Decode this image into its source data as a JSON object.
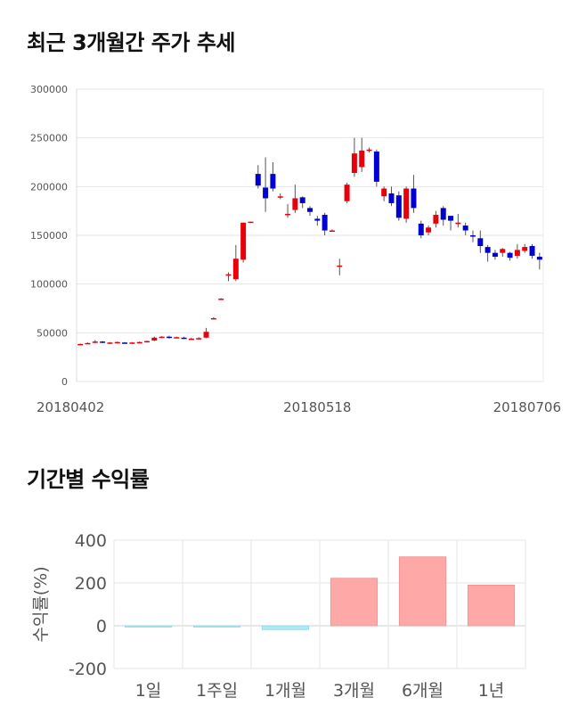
{
  "sections": {
    "price_title": "최근 3개월간 주가 추세",
    "return_title": "기간별 수익률"
  },
  "chart_data": [
    {
      "type": "candlestick",
      "title": "최근 3개월간 주가 추세",
      "ylim": [
        0,
        300000
      ],
      "yticks": [
        0,
        50000,
        100000,
        150000,
        200000,
        250000,
        300000
      ],
      "ytick_labels": [
        "0",
        "50000",
        "100000",
        "150000",
        "200000",
        "250000",
        "300000"
      ],
      "xtick_labels": [
        {
          "index": 0,
          "label": "20180402"
        },
        {
          "index": 32,
          "label": "20180518"
        },
        {
          "index": 64,
          "label": "20180706"
        }
      ],
      "grid": true,
      "colors": {
        "up": "#e8000b",
        "down": "#0000d0",
        "wick": "#555555",
        "grid": "#e6e6e6"
      },
      "candles": [
        [
          38500,
          38500,
          38000,
          39000
        ],
        [
          38500,
          39500,
          38500,
          40000
        ],
        [
          40000,
          41000,
          39500,
          42500
        ],
        [
          41000,
          40000,
          39500,
          41500
        ],
        [
          40000,
          40000,
          39500,
          40500
        ],
        [
          40000,
          40500,
          39500,
          41000
        ],
        [
          40000,
          39500,
          39000,
          40500
        ],
        [
          39500,
          40000,
          39000,
          40500
        ],
        [
          40000,
          40500,
          39500,
          41000
        ],
        [
          40500,
          41500,
          40000,
          42000
        ],
        [
          42000,
          45000,
          41500,
          46000
        ],
        [
          45000,
          46000,
          44500,
          46500
        ],
        [
          46000,
          45000,
          44000,
          47000
        ],
        [
          45000,
          45500,
          44500,
          46000
        ],
        [
          45000,
          44500,
          43500,
          46000
        ],
        [
          44000,
          44000,
          43000,
          45000
        ],
        [
          44000,
          44500,
          43500,
          45500
        ],
        [
          45000,
          51000,
          44500,
          55000
        ],
        [
          64000,
          65000,
          64000,
          66000
        ],
        [
          84000,
          85000,
          84000,
          85500
        ],
        [
          110000,
          110000,
          103000,
          112000
        ],
        [
          105000,
          126000,
          103000,
          140000
        ],
        [
          125000,
          163000,
          122000,
          163000
        ],
        [
          163500,
          164000,
          163000,
          164000
        ],
        [
          213000,
          201000,
          198000,
          222000
        ],
        [
          199000,
          188000,
          174000,
          230000
        ],
        [
          213000,
          198000,
          195000,
          225000
        ],
        [
          190000,
          190000,
          187000,
          193000
        ],
        [
          172000,
          172000,
          168000,
          182000
        ],
        [
          176000,
          188000,
          173000,
          202000
        ],
        [
          189000,
          183000,
          178000,
          190000
        ],
        [
          178000,
          174000,
          170000,
          180000
        ],
        [
          167000,
          165000,
          160000,
          170000
        ],
        [
          171000,
          155000,
          150000,
          173000
        ],
        [
          155000,
          155000,
          154000,
          156000
        ],
        [
          119000,
          119000,
          109000,
          126000
        ],
        [
          185000,
          202000,
          183000,
          204000
        ],
        [
          214000,
          234000,
          210000,
          250000
        ],
        [
          220000,
          237000,
          215000,
          250000
        ],
        [
          238000,
          238000,
          235000,
          240000
        ],
        [
          236000,
          205000,
          200000,
          238000
        ],
        [
          190000,
          198000,
          185000,
          200000
        ],
        [
          193000,
          183000,
          180000,
          200000
        ],
        [
          191000,
          168000,
          165000,
          195000
        ],
        [
          167000,
          198000,
          163000,
          200000
        ],
        [
          198000,
          178000,
          173000,
          212000
        ],
        [
          162000,
          150000,
          147000,
          165000
        ],
        [
          153000,
          158000,
          150000,
          160000
        ],
        [
          162000,
          171000,
          158000,
          175000
        ],
        [
          178000,
          166000,
          160000,
          180000
        ],
        [
          170000,
          165000,
          155000,
          170000
        ],
        [
          163000,
          163000,
          158000,
          172000
        ],
        [
          160000,
          155000,
          150000,
          163000
        ],
        [
          150000,
          149000,
          143000,
          155000
        ],
        [
          147000,
          139000,
          132000,
          155000
        ],
        [
          138000,
          132000,
          123000,
          140000
        ],
        [
          132000,
          128000,
          125000,
          135000
        ],
        [
          132000,
          136000,
          128000,
          137000
        ],
        [
          132000,
          127000,
          124000,
          133000
        ],
        [
          129000,
          135000,
          126000,
          141000
        ],
        [
          134000,
          138000,
          132000,
          141000
        ],
        [
          139000,
          129000,
          126000,
          141000
        ],
        [
          128000,
          125000,
          115000,
          132000
        ]
      ]
    },
    {
      "type": "bar",
      "title": "기간별 수익률",
      "categories": [
        "1일",
        "1주일",
        "1개월",
        "3개월",
        "6개월",
        "1년"
      ],
      "values": [
        -1,
        -3,
        -18,
        222,
        322,
        190
      ],
      "ylabel": "수익률(%)",
      "ylim": [
        -200,
        400
      ],
      "yticks": [
        -200,
        0,
        200,
        400
      ],
      "ytick_labels": [
        "-200",
        "0",
        "200",
        "400"
      ],
      "colors": {
        "positive": "#ffa8a8",
        "negative": "#b0e8f4",
        "grid": "#e6e6e6"
      }
    }
  ]
}
